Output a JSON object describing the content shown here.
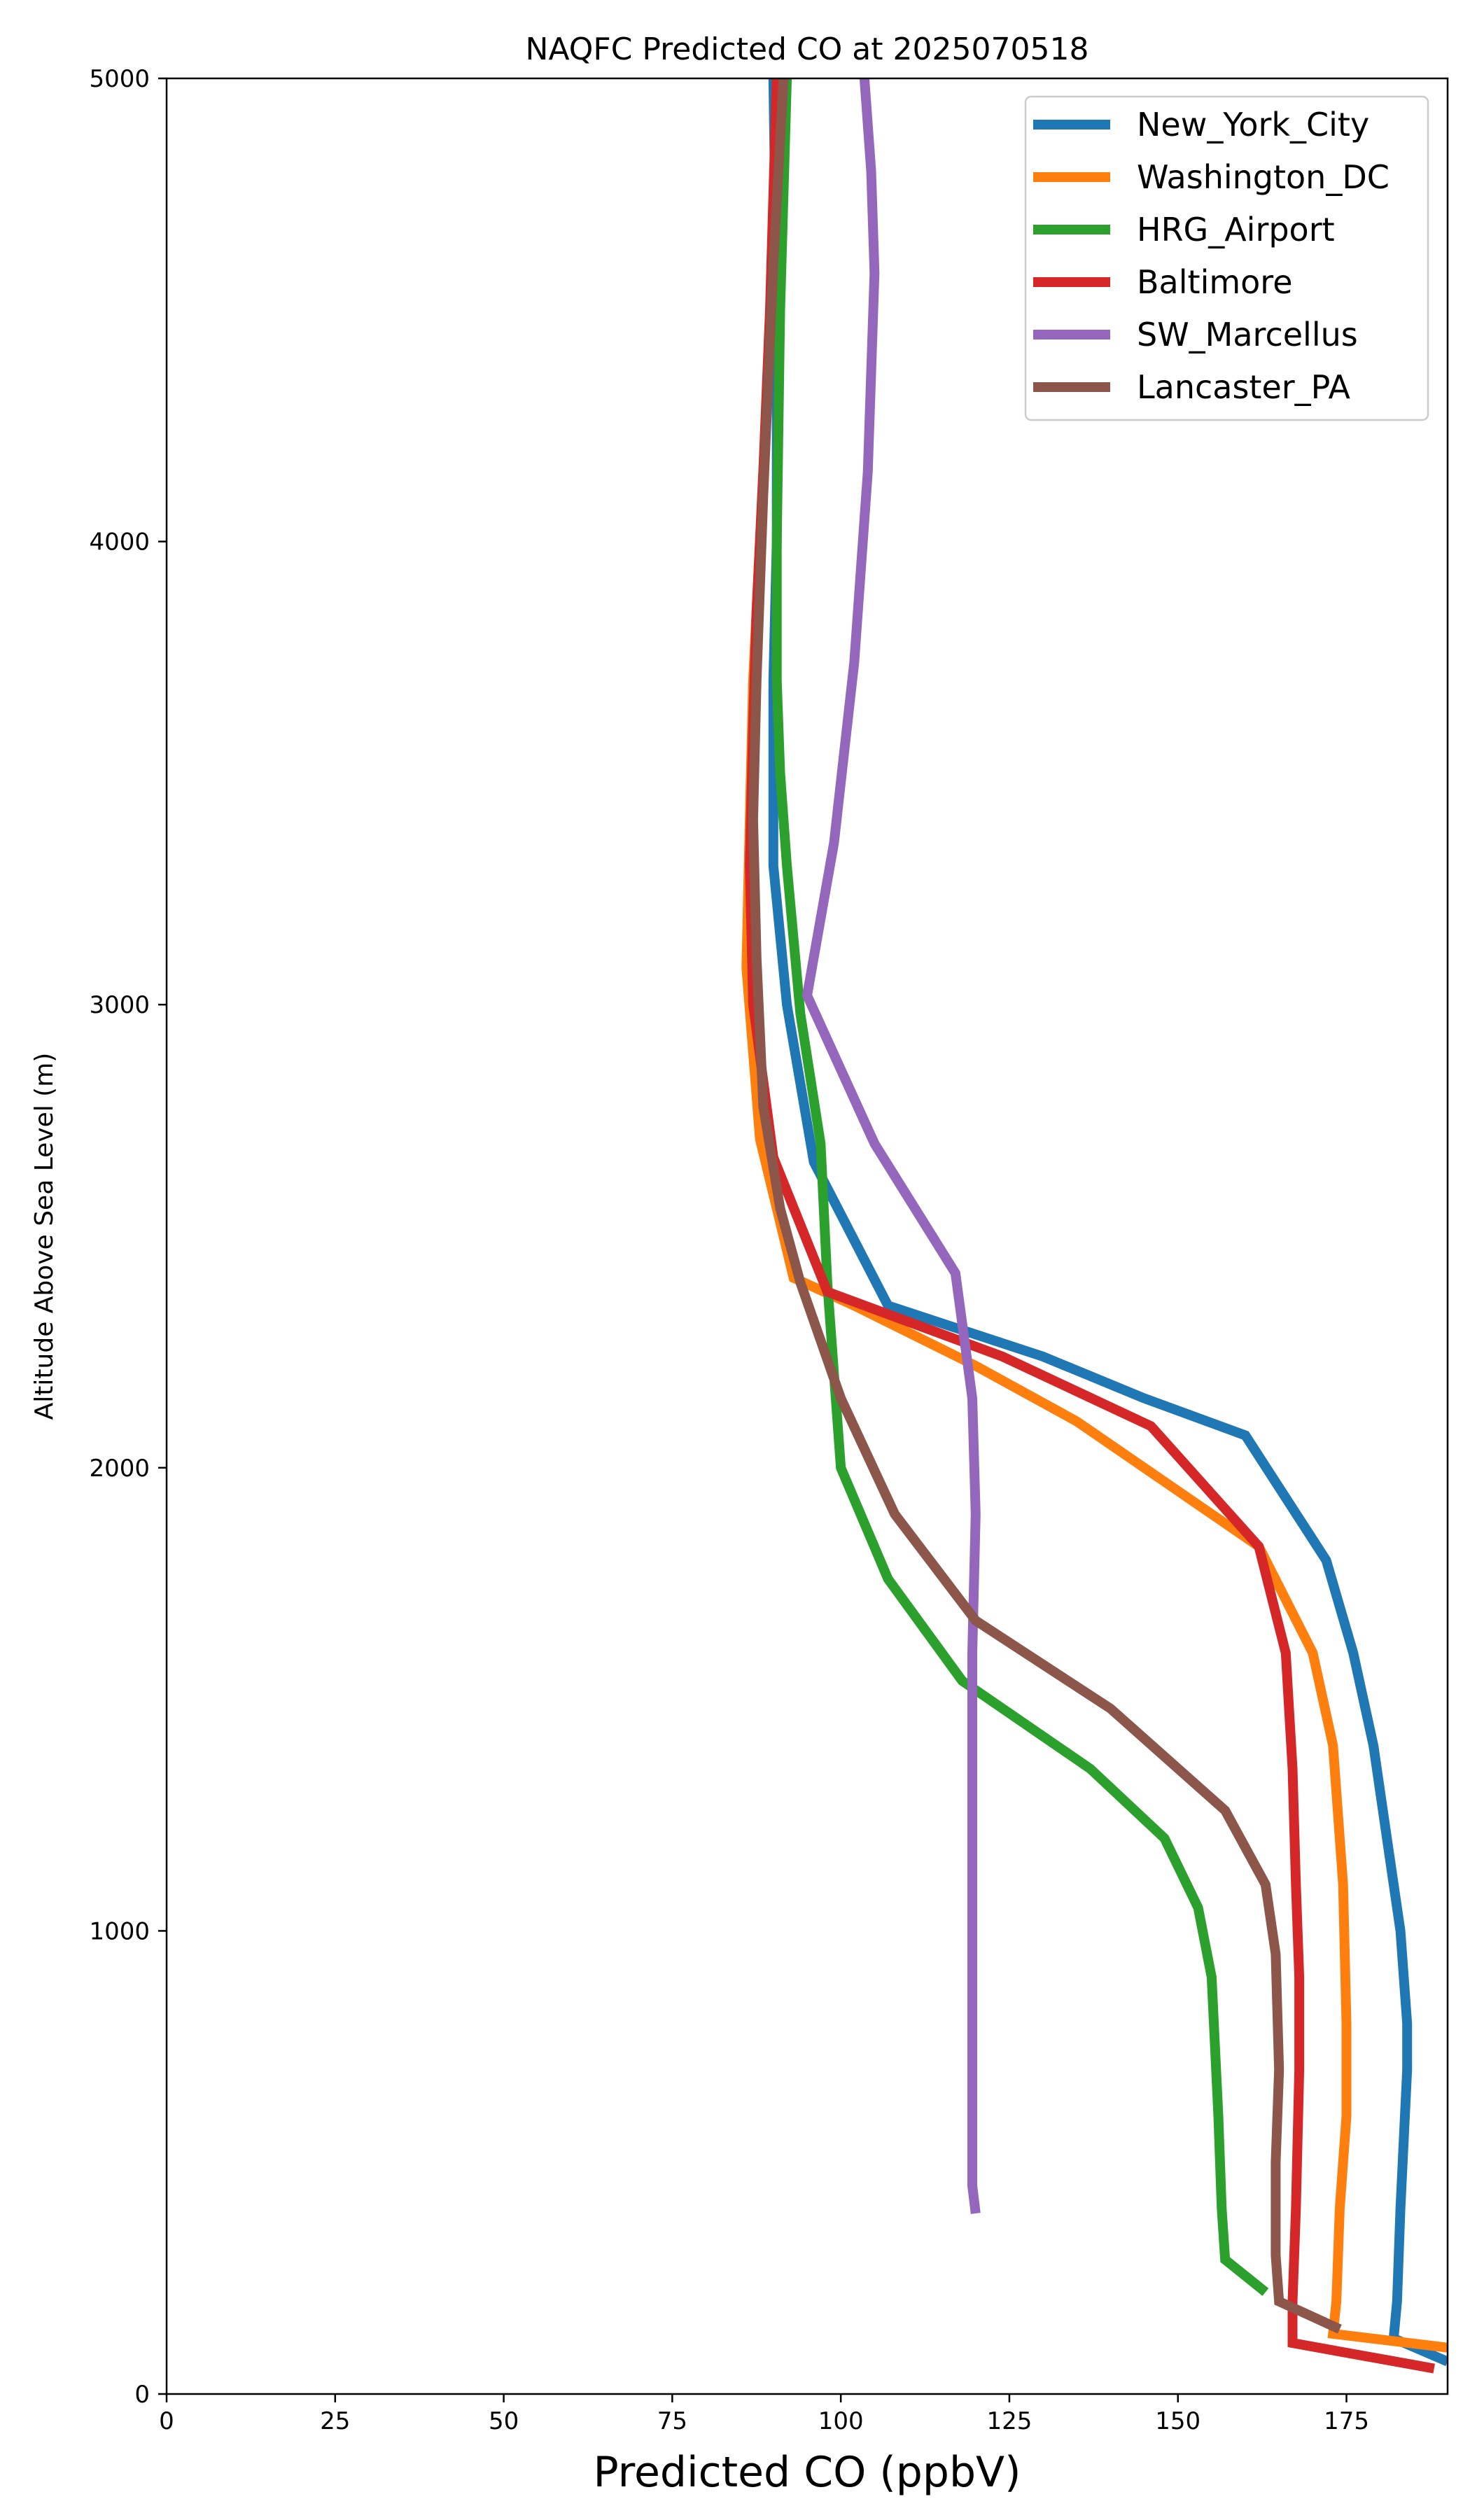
{
  "chart_data": {
    "type": "line",
    "title": "NAQFC Predicted CO at 2025070518",
    "xlabel": "Predicted CO (ppbV)",
    "ylabel": "Altitude Above Sea Level (m)",
    "xlim": [
      0,
      190
    ],
    "ylim": [
      0,
      5000
    ],
    "xticks": [
      0,
      25,
      50,
      75,
      100,
      125,
      150,
      175
    ],
    "yticks": [
      0,
      1000,
      2000,
      3000,
      4000,
      5000
    ],
    "grid": false,
    "legend": "top-right",
    "series": [
      {
        "name": "New_York_City",
        "color": "#1f77b4",
        "points": [
          [
            190,
            70
          ],
          [
            182,
            120
          ],
          [
            182.5,
            200
          ],
          [
            183,
            400
          ],
          [
            184,
            700
          ],
          [
            184,
            800
          ],
          [
            183,
            1000
          ],
          [
            181,
            1200
          ],
          [
            179,
            1400
          ],
          [
            176,
            1600
          ],
          [
            172,
            1800
          ],
          [
            160,
            2070
          ],
          [
            145,
            2150
          ],
          [
            130,
            2240
          ],
          [
            107,
            2350
          ],
          [
            96,
            2660
          ],
          [
            92,
            3000
          ],
          [
            90,
            3300
          ],
          [
            90,
            3700
          ],
          [
            90.5,
            4000
          ],
          [
            90.5,
            4500
          ],
          [
            90,
            5000
          ]
        ]
      },
      {
        "name": "Washington_DC",
        "color": "#ff7f0e",
        "points": [
          [
            190,
            100
          ],
          [
            173,
            130
          ],
          [
            173.5,
            200
          ],
          [
            174,
            400
          ],
          [
            175,
            600
          ],
          [
            175,
            800
          ],
          [
            174.5,
            1100
          ],
          [
            173,
            1400
          ],
          [
            170,
            1600
          ],
          [
            162,
            1830
          ],
          [
            135,
            2100
          ],
          [
            120,
            2220
          ],
          [
            102,
            2350
          ],
          [
            93,
            2410
          ],
          [
            88,
            2710
          ],
          [
            86,
            3080
          ],
          [
            86.5,
            3400
          ],
          [
            87,
            3700
          ],
          [
            88,
            4000
          ],
          [
            89,
            4300
          ],
          [
            90,
            4600
          ],
          [
            91,
            5000
          ]
        ]
      },
      {
        "name": "HRG_Airport",
        "color": "#2ca02c",
        "points": [
          [
            163,
            220
          ],
          [
            157,
            290
          ],
          [
            156.5,
            400
          ],
          [
            156,
            600
          ],
          [
            155.5,
            750
          ],
          [
            155,
            900
          ],
          [
            153,
            1050
          ],
          [
            148,
            1200
          ],
          [
            137,
            1350
          ],
          [
            118,
            1540
          ],
          [
            107,
            1760
          ],
          [
            100,
            2000
          ],
          [
            99,
            2200
          ],
          [
            98,
            2400
          ],
          [
            97,
            2700
          ],
          [
            94,
            2980
          ],
          [
            92,
            3300
          ],
          [
            91,
            3500
          ],
          [
            90.5,
            3700
          ],
          [
            90.5,
            4000
          ],
          [
            91,
            4500
          ],
          [
            92,
            5000
          ]
        ]
      },
      {
        "name": "Baltimore",
        "color": "#d62728",
        "points": [
          [
            188,
            55
          ],
          [
            167,
            110
          ],
          [
            167,
            200
          ],
          [
            167.5,
            400
          ],
          [
            168,
            700
          ],
          [
            168,
            900
          ],
          [
            167.5,
            1100
          ],
          [
            167,
            1350
          ],
          [
            166,
            1600
          ],
          [
            162,
            1830
          ],
          [
            146,
            2090
          ],
          [
            124,
            2240
          ],
          [
            98,
            2380
          ],
          [
            90,
            2670
          ],
          [
            87,
            3000
          ],
          [
            86.5,
            3300
          ],
          [
            87,
            3600
          ],
          [
            87.5,
            3850
          ],
          [
            88.5,
            4150
          ],
          [
            89.5,
            4500
          ],
          [
            90.5,
            5000
          ]
        ]
      },
      {
        "name": "SW_Marcellus",
        "color": "#9467bd",
        "points": [
          [
            120,
            390
          ],
          [
            119.5,
            450
          ],
          [
            119.5,
            800
          ],
          [
            119.5,
            1200
          ],
          [
            119.5,
            1600
          ],
          [
            120,
            1900
          ],
          [
            119.5,
            2150
          ],
          [
            117,
            2420
          ],
          [
            105,
            2700
          ],
          [
            95,
            3020
          ],
          [
            99,
            3350
          ],
          [
            102,
            3740
          ],
          [
            104,
            4150
          ],
          [
            105,
            4580
          ],
          [
            104.5,
            4800
          ],
          [
            103.5,
            5000
          ]
        ]
      },
      {
        "name": "Lancaster_PA",
        "color": "#8c564b",
        "points": [
          [
            174,
            140
          ],
          [
            165,
            200
          ],
          [
            164.5,
            300
          ],
          [
            164.5,
            500
          ],
          [
            165,
            700
          ],
          [
            164.5,
            950
          ],
          [
            163,
            1100
          ],
          [
            157,
            1260
          ],
          [
            140,
            1480
          ],
          [
            120,
            1670
          ],
          [
            108,
            1900
          ],
          [
            100,
            2150
          ],
          [
            94,
            2400
          ],
          [
            91,
            2560
          ],
          [
            88.5,
            2780
          ],
          [
            87.5,
            3100
          ],
          [
            87,
            3400
          ],
          [
            87.5,
            3700
          ],
          [
            88.5,
            4100
          ],
          [
            90,
            4600
          ],
          [
            91.5,
            5000
          ]
        ]
      }
    ]
  }
}
